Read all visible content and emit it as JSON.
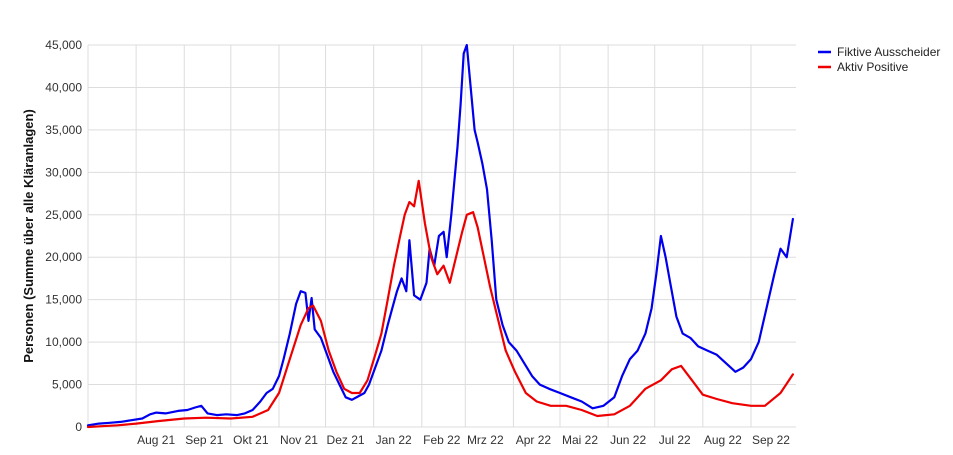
{
  "chart_data": {
    "type": "line",
    "xlabel": "",
    "ylabel": "Personen (Summe über alle Kläranlagen)",
    "ylim": [
      0,
      45000
    ],
    "yticks": [
      0,
      5000,
      10000,
      15000,
      20000,
      25000,
      30000,
      35000,
      40000,
      45000
    ],
    "ytick_labels": [
      "0",
      "5,000",
      "10,000",
      "15,000",
      "20,000",
      "25,000",
      "30,000",
      "35,000",
      "40,000",
      "45,000"
    ],
    "xlim": [
      "2021-07-01",
      "2022-09-30"
    ],
    "xticks": [
      {
        "date": "2021-08-01",
        "label": "Aug 21"
      },
      {
        "date": "2021-09-01",
        "label": "Sep 21"
      },
      {
        "date": "2021-10-01",
        "label": "Okt 21"
      },
      {
        "date": "2021-11-01",
        "label": "Nov 21"
      },
      {
        "date": "2021-12-01",
        "label": "Dez 21"
      },
      {
        "date": "2022-01-01",
        "label": "Jan 22"
      },
      {
        "date": "2022-02-01",
        "label": "Feb 22"
      },
      {
        "date": "2022-03-01",
        "label": "Mrz 22"
      },
      {
        "date": "2022-04-01",
        "label": "Apr 22"
      },
      {
        "date": "2022-05-01",
        "label": "Mai 22"
      },
      {
        "date": "2022-06-01",
        "label": "Jun 22"
      },
      {
        "date": "2022-07-01",
        "label": "Jul 22"
      },
      {
        "date": "2022-08-01",
        "label": "Aug 22"
      },
      {
        "date": "2022-09-01",
        "label": "Sep 22"
      }
    ],
    "grid": true,
    "legend_position": "top-right",
    "series": [
      {
        "name": "Fiktive Ausscheider",
        "color": "#0000ee",
        "points": [
          [
            "2021-07-01",
            200
          ],
          [
            "2021-07-08",
            400
          ],
          [
            "2021-07-15",
            500
          ],
          [
            "2021-07-22",
            600
          ],
          [
            "2021-07-29",
            800
          ],
          [
            "2021-08-05",
            1000
          ],
          [
            "2021-08-10",
            1500
          ],
          [
            "2021-08-14",
            1700
          ],
          [
            "2021-08-20",
            1600
          ],
          [
            "2021-08-28",
            1900
          ],
          [
            "2021-09-03",
            2000
          ],
          [
            "2021-09-08",
            2300
          ],
          [
            "2021-09-12",
            2500
          ],
          [
            "2021-09-16",
            1600
          ],
          [
            "2021-09-22",
            1400
          ],
          [
            "2021-09-28",
            1500
          ],
          [
            "2021-10-05",
            1400
          ],
          [
            "2021-10-10",
            1600
          ],
          [
            "2021-10-15",
            2000
          ],
          [
            "2021-10-20",
            3000
          ],
          [
            "2021-10-24",
            4000
          ],
          [
            "2021-10-28",
            4500
          ],
          [
            "2021-11-01",
            6000
          ],
          [
            "2021-11-04",
            8000
          ],
          [
            "2021-11-08",
            11000
          ],
          [
            "2021-11-12",
            14500
          ],
          [
            "2021-11-15",
            16000
          ],
          [
            "2021-11-18",
            15800
          ],
          [
            "2021-11-20",
            12500
          ],
          [
            "2021-11-22",
            15200
          ],
          [
            "2021-11-24",
            11500
          ],
          [
            "2021-11-28",
            10500
          ],
          [
            "2021-12-02",
            8500
          ],
          [
            "2021-12-06",
            6500
          ],
          [
            "2021-12-10",
            5000
          ],
          [
            "2021-12-14",
            3500
          ],
          [
            "2021-12-18",
            3200
          ],
          [
            "2021-12-22",
            3600
          ],
          [
            "2021-12-26",
            4000
          ],
          [
            "2021-12-29",
            5000
          ],
          [
            "2022-01-02",
            7000
          ],
          [
            "2022-01-06",
            9000
          ],
          [
            "2022-01-10",
            12000
          ],
          [
            "2022-01-13",
            14000
          ],
          [
            "2022-01-16",
            16000
          ],
          [
            "2022-01-19",
            17500
          ],
          [
            "2022-01-22",
            16000
          ],
          [
            "2022-01-24",
            22000
          ],
          [
            "2022-01-27",
            15500
          ],
          [
            "2022-01-31",
            15000
          ],
          [
            "2022-02-04",
            17000
          ],
          [
            "2022-02-06",
            21000
          ],
          [
            "2022-02-09",
            19000
          ],
          [
            "2022-02-12",
            22500
          ],
          [
            "2022-02-15",
            23000
          ],
          [
            "2022-02-17",
            20000
          ],
          [
            "2022-02-20",
            25000
          ],
          [
            "2022-02-22",
            29000
          ],
          [
            "2022-02-24",
            33000
          ],
          [
            "2022-02-26",
            38000
          ],
          [
            "2022-02-28",
            44000
          ],
          [
            "2022-03-02",
            45000
          ],
          [
            "2022-03-04",
            41000
          ],
          [
            "2022-03-07",
            35000
          ],
          [
            "2022-03-09",
            33500
          ],
          [
            "2022-03-12",
            31000
          ],
          [
            "2022-03-15",
            28000
          ],
          [
            "2022-03-18",
            22000
          ],
          [
            "2022-03-21",
            15000
          ],
          [
            "2022-03-25",
            12000
          ],
          [
            "2022-03-29",
            10000
          ],
          [
            "2022-04-03",
            9000
          ],
          [
            "2022-04-08",
            7500
          ],
          [
            "2022-04-13",
            6000
          ],
          [
            "2022-04-18",
            5000
          ],
          [
            "2022-04-24",
            4500
          ],
          [
            "2022-05-01",
            4000
          ],
          [
            "2022-05-08",
            3500
          ],
          [
            "2022-05-15",
            3000
          ],
          [
            "2022-05-22",
            2200
          ],
          [
            "2022-05-29",
            2500
          ],
          [
            "2022-06-05",
            3500
          ],
          [
            "2022-06-10",
            6000
          ],
          [
            "2022-06-15",
            8000
          ],
          [
            "2022-06-20",
            9000
          ],
          [
            "2022-06-25",
            11000
          ],
          [
            "2022-06-29",
            14000
          ],
          [
            "2022-07-02",
            18000
          ],
          [
            "2022-07-05",
            22500
          ],
          [
            "2022-07-08",
            20000
          ],
          [
            "2022-07-11",
            17000
          ],
          [
            "2022-07-15",
            13000
          ],
          [
            "2022-07-19",
            11000
          ],
          [
            "2022-07-24",
            10500
          ],
          [
            "2022-07-29",
            9500
          ],
          [
            "2022-08-04",
            9000
          ],
          [
            "2022-08-10",
            8500
          ],
          [
            "2022-08-16",
            7500
          ],
          [
            "2022-08-22",
            6500
          ],
          [
            "2022-08-27",
            7000
          ],
          [
            "2022-09-01",
            8000
          ],
          [
            "2022-09-06",
            10000
          ],
          [
            "2022-09-11",
            14000
          ],
          [
            "2022-09-16",
            18000
          ],
          [
            "2022-09-20",
            21000
          ],
          [
            "2022-09-24",
            20000
          ],
          [
            "2022-09-28",
            24500
          ]
        ]
      },
      {
        "name": "Aktiv Positive",
        "color": "#ee0000",
        "points": [
          [
            "2021-07-01",
            0
          ],
          [
            "2021-07-10",
            100
          ],
          [
            "2021-07-20",
            200
          ],
          [
            "2021-08-01",
            400
          ],
          [
            "2021-08-15",
            700
          ],
          [
            "2021-09-01",
            1000
          ],
          [
            "2021-09-15",
            1100
          ],
          [
            "2021-10-01",
            1000
          ],
          [
            "2021-10-15",
            1200
          ],
          [
            "2021-10-25",
            2000
          ],
          [
            "2021-11-01",
            4000
          ],
          [
            "2021-11-08",
            8000
          ],
          [
            "2021-11-15",
            12000
          ],
          [
            "2021-11-20",
            14000
          ],
          [
            "2021-11-23",
            14300
          ],
          [
            "2021-11-28",
            12500
          ],
          [
            "2021-12-03",
            9000
          ],
          [
            "2021-12-08",
            6500
          ],
          [
            "2021-12-13",
            4500
          ],
          [
            "2021-12-18",
            4000
          ],
          [
            "2021-12-23",
            4000
          ],
          [
            "2021-12-28",
            5500
          ],
          [
            "2022-01-02",
            8500
          ],
          [
            "2022-01-06",
            11000
          ],
          [
            "2022-01-10",
            15000
          ],
          [
            "2022-01-14",
            19000
          ],
          [
            "2022-01-18",
            22500
          ],
          [
            "2022-01-21",
            25000
          ],
          [
            "2022-01-24",
            26500
          ],
          [
            "2022-01-27",
            26000
          ],
          [
            "2022-01-30",
            29000
          ],
          [
            "2022-02-03",
            24000
          ],
          [
            "2022-02-07",
            20000
          ],
          [
            "2022-02-11",
            18000
          ],
          [
            "2022-02-15",
            19000
          ],
          [
            "2022-02-19",
            17000
          ],
          [
            "2022-02-23",
            20000
          ],
          [
            "2022-02-27",
            23000
          ],
          [
            "2022-03-02",
            25000
          ],
          [
            "2022-03-06",
            25300
          ],
          [
            "2022-03-09",
            23500
          ],
          [
            "2022-03-13",
            20000
          ],
          [
            "2022-03-17",
            16500
          ],
          [
            "2022-03-21",
            13500
          ],
          [
            "2022-03-27",
            9000
          ],
          [
            "2022-04-02",
            6500
          ],
          [
            "2022-04-09",
            4000
          ],
          [
            "2022-04-16",
            3000
          ],
          [
            "2022-04-25",
            2500
          ],
          [
            "2022-05-05",
            2500
          ],
          [
            "2022-05-15",
            2000
          ],
          [
            "2022-05-25",
            1300
          ],
          [
            "2022-06-05",
            1500
          ],
          [
            "2022-06-15",
            2500
          ],
          [
            "2022-06-25",
            4500
          ],
          [
            "2022-07-05",
            5500
          ],
          [
            "2022-07-12",
            6800
          ],
          [
            "2022-07-18",
            7200
          ],
          [
            "2022-07-25",
            5500
          ],
          [
            "2022-08-01",
            3800
          ],
          [
            "2022-08-10",
            3300
          ],
          [
            "2022-08-20",
            2800
          ],
          [
            "2022-09-01",
            2500
          ],
          [
            "2022-09-10",
            2500
          ],
          [
            "2022-09-20",
            4000
          ],
          [
            "2022-09-28",
            6200
          ]
        ]
      }
    ]
  }
}
